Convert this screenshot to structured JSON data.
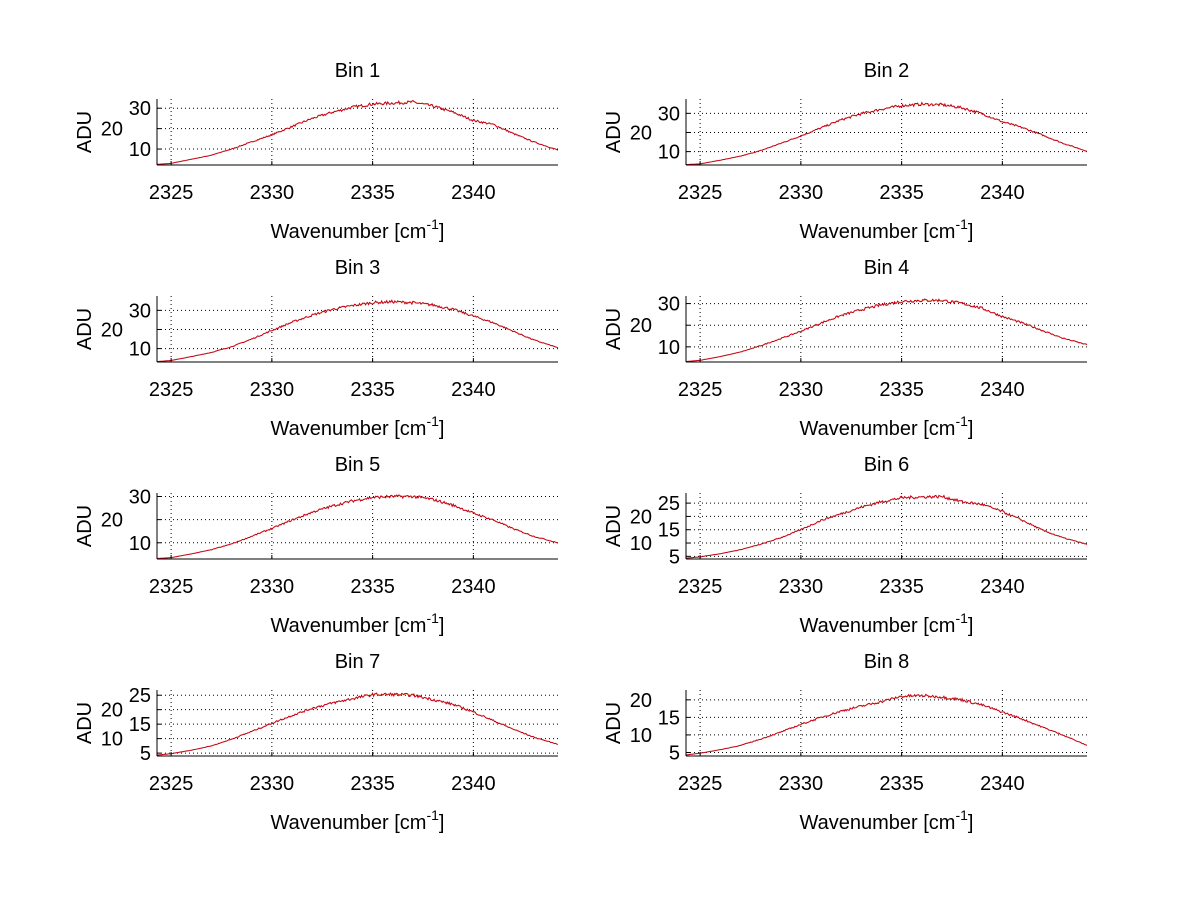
{
  "chart_data": [
    {
      "type": "line",
      "title": "Bin 1",
      "xlabel": "Wavenumber [cm^{-1}]",
      "ylabel": "ADU",
      "xlim": [
        2324.3,
        2344.2
      ],
      "ylim": [
        2.2,
        34.5
      ],
      "xticks": [
        2325,
        2330,
        2335,
        2340
      ],
      "yticks": [
        10,
        20,
        30
      ],
      "grid": true,
      "x": [
        2324.3,
        2325,
        2326,
        2327,
        2328,
        2329,
        2330,
        2331,
        2332,
        2333,
        2334,
        2335,
        2336,
        2337,
        2338,
        2339,
        2340,
        2341,
        2342,
        2343,
        2344.2
      ],
      "y": [
        2.5,
        3,
        5,
        7,
        10,
        13.5,
        17,
        21,
        25,
        28,
        30.5,
        32,
        32.5,
        33,
        31,
        28,
        24,
        22,
        17.5,
        13.5,
        9.5
      ]
    },
    {
      "type": "line",
      "title": "Bin 2",
      "xlabel": "Wavenumber [cm^{-1}]",
      "ylabel": "ADU",
      "xlim": [
        2324.3,
        2344.2
      ],
      "ylim": [
        3,
        37.5
      ],
      "xticks": [
        2325,
        2330,
        2335,
        2340
      ],
      "yticks": [
        10,
        20,
        30
      ],
      "grid": true,
      "x": [
        2324.3,
        2325,
        2326,
        2327,
        2328,
        2329,
        2330,
        2331,
        2332,
        2333,
        2334,
        2335,
        2336,
        2337,
        2338,
        2339,
        2340,
        2341,
        2342,
        2343,
        2344.2
      ],
      "y": [
        3.2,
        3.6,
        5.5,
        7.6,
        10.5,
        14.3,
        18.2,
        22.4,
        26.6,
        29.8,
        32.2,
        34,
        34.8,
        34.5,
        32.9,
        29.8,
        25.6,
        22.5,
        18.6,
        14.4,
        10.2
      ]
    },
    {
      "type": "line",
      "title": "Bin 3",
      "xlabel": "Wavenumber [cm^{-1}]",
      "ylabel": "ADU",
      "xlim": [
        2324.3,
        2344.2
      ],
      "ylim": [
        3,
        37.5
      ],
      "xticks": [
        2325,
        2330,
        2335,
        2340
      ],
      "yticks": [
        10,
        20,
        30
      ],
      "grid": true,
      "x": [
        2324.3,
        2325,
        2326,
        2327,
        2328,
        2329,
        2330,
        2331,
        2332,
        2333,
        2334,
        2335,
        2336,
        2337,
        2338,
        2339,
        2340,
        2341,
        2342,
        2343,
        2344.2
      ],
      "y": [
        3.2,
        3.8,
        5.8,
        8,
        11,
        15,
        19.5,
        23.8,
        27.5,
        30.5,
        32.5,
        34,
        34.5,
        34,
        32.8,
        30.5,
        27,
        23.5,
        19,
        14.5,
        10.5
      ]
    },
    {
      "type": "line",
      "title": "Bin 4",
      "xlabel": "Wavenumber [cm^{-1}]",
      "ylabel": "ADU",
      "xlim": [
        2324.3,
        2344.2
      ],
      "ylim": [
        3,
        33.5
      ],
      "xticks": [
        2325,
        2330,
        2335,
        2340
      ],
      "yticks": [
        10,
        20,
        30
      ],
      "grid": true,
      "x": [
        2324.3,
        2325,
        2326,
        2327,
        2328,
        2329,
        2330,
        2331,
        2332,
        2333,
        2334,
        2335,
        2336,
        2337,
        2338,
        2339,
        2340,
        2341,
        2342,
        2343,
        2344.2
      ],
      "y": [
        3.2,
        3.8,
        5.5,
        7.6,
        10.5,
        13.8,
        17.2,
        21,
        24.5,
        27.2,
        29.4,
        31,
        31.5,
        31.5,
        30.1,
        27.8,
        24,
        21,
        17.5,
        14,
        11
      ]
    },
    {
      "type": "line",
      "title": "Bin 5",
      "xlabel": "Wavenumber [cm^{-1}]",
      "ylabel": "ADU",
      "xlim": [
        2324.3,
        2344.2
      ],
      "ylim": [
        3,
        31.5
      ],
      "xticks": [
        2325,
        2330,
        2335,
        2340
      ],
      "yticks": [
        10,
        20,
        30
      ],
      "grid": true,
      "x": [
        2324.3,
        2325,
        2326,
        2327,
        2328,
        2329,
        2330,
        2331,
        2332,
        2333,
        2334,
        2335,
        2336,
        2337,
        2338,
        2339,
        2340,
        2341,
        2342,
        2343,
        2344.2
      ],
      "y": [
        3.2,
        3.6,
        5.2,
        7,
        9.5,
        12.8,
        16.2,
        19.8,
        23.2,
        25.9,
        28.1,
        29.6,
        30,
        30,
        28.7,
        26.2,
        22.8,
        19.8,
        16,
        12.8,
        10
      ]
    },
    {
      "type": "line",
      "title": "Bin 6",
      "xlabel": "Wavenumber [cm^{-1}]",
      "ylabel": "ADU",
      "xlim": [
        2324.3,
        2344.2
      ],
      "ylim": [
        4,
        28.8
      ],
      "xticks": [
        2325,
        2330,
        2335,
        2340
      ],
      "yticks": [
        5,
        10,
        15,
        20,
        25
      ],
      "grid": true,
      "x": [
        2324.3,
        2325,
        2326,
        2327,
        2328,
        2329,
        2330,
        2331,
        2332,
        2333,
        2334,
        2335,
        2336,
        2337,
        2338,
        2339,
        2340,
        2341,
        2342,
        2343,
        2344.2
      ],
      "y": [
        4.3,
        4.8,
        6,
        7.5,
        9.5,
        12,
        15,
        18.5,
        21,
        23.5,
        25.5,
        27,
        27.3,
        27.5,
        25.5,
        24.5,
        21.8,
        18.5,
        14.8,
        12,
        9.5
      ]
    },
    {
      "type": "line",
      "title": "Bin 7",
      "xlabel": "Wavenumber [cm^{-1}]",
      "ylabel": "ADU",
      "xlim": [
        2324.3,
        2344.2
      ],
      "ylim": [
        4,
        26.8
      ],
      "xticks": [
        2325,
        2330,
        2335,
        2340
      ],
      "yticks": [
        5,
        10,
        15,
        20,
        25
      ],
      "grid": true,
      "x": [
        2324.3,
        2325,
        2326,
        2327,
        2328,
        2329,
        2330,
        2331,
        2332,
        2333,
        2334,
        2335,
        2336,
        2337,
        2338,
        2339,
        2340,
        2341,
        2342,
        2343,
        2344.2
      ],
      "y": [
        4.3,
        4.8,
        6,
        7.5,
        9.8,
        12.5,
        15.3,
        18,
        20.5,
        22.3,
        23.8,
        25.2,
        25.3,
        25,
        23.5,
        21.8,
        19.2,
        16.2,
        13.2,
        10.5,
        8
      ]
    },
    {
      "type": "line",
      "title": "Bin 8",
      "xlabel": "Wavenumber [cm^{-1}]",
      "ylabel": "ADU",
      "xlim": [
        2324.3,
        2344.2
      ],
      "ylim": [
        4,
        22.8
      ],
      "xticks": [
        2325,
        2330,
        2335,
        2340
      ],
      "yticks": [
        5,
        10,
        15,
        20
      ],
      "grid": true,
      "x": [
        2324.3,
        2325,
        2326,
        2327,
        2328,
        2329,
        2330,
        2331,
        2332,
        2333,
        2334,
        2335,
        2336,
        2337,
        2338,
        2339,
        2340,
        2341,
        2342,
        2343,
        2344.2
      ],
      "y": [
        4.3,
        4.8,
        5.8,
        7,
        8.8,
        10.8,
        13,
        15,
        16.8,
        18.2,
        19.5,
        21,
        21.2,
        20.8,
        20,
        18.5,
        16.5,
        14.5,
        12.2,
        10,
        7
      ]
    }
  ]
}
